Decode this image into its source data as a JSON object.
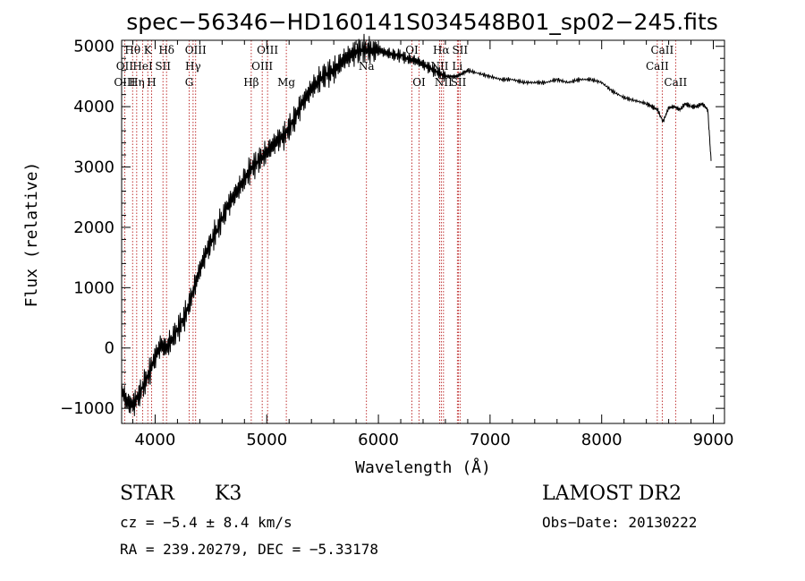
{
  "chart_data": {
    "type": "line",
    "title": "spec−56346−HD160141S034548B01_sp02−245.fits",
    "xlabel": "Wavelength (Å)",
    "ylabel": "Flux (relative)",
    "xlim": [
      3700,
      9100
    ],
    "ylim": [
      -1250,
      5100
    ],
    "x_ticks": [
      4000,
      5000,
      6000,
      7000,
      8000,
      9000
    ],
    "y_ticks": [
      -1000,
      0,
      1000,
      2000,
      3000,
      4000,
      5000
    ],
    "y_tick_labels": [
      "−1000",
      "0",
      "1000",
      "2000",
      "3000",
      "4000",
      "5000"
    ],
    "grid": false,
    "series": [
      {
        "x": [
          3700,
          3750,
          3800,
          3850,
          3900,
          3950,
          4000,
          4050,
          4100,
          4150,
          4200,
          4250,
          4300,
          4350,
          4400,
          4450,
          4500,
          4550,
          4600,
          4650,
          4700,
          4750,
          4800,
          4850,
          4900,
          4950,
          5000,
          5050,
          5100,
          5150,
          5200,
          5250,
          5300,
          5350,
          5400,
          5450,
          5500,
          5550,
          5600,
          5650,
          5700,
          5750,
          5800,
          5850,
          5900,
          5950,
          6000,
          6050,
          6100,
          6150,
          6200,
          6250,
          6300,
          6350,
          6400,
          6450,
          6500,
          6550,
          6600,
          6650,
          6700,
          6750,
          6800,
          6900,
          7000,
          7100,
          7200,
          7300,
          7400,
          7500,
          7600,
          7700,
          7800,
          7900,
          8000,
          8100,
          8200,
          8300,
          8400,
          8450,
          8500,
          8550,
          8600,
          8650,
          8700,
          8750,
          8800,
          8850,
          8900,
          8950,
          8980
        ],
        "y": [
          -700,
          -900,
          -950,
          -800,
          -600,
          -400,
          -150,
          50,
          0,
          150,
          300,
          450,
          700,
          1000,
          1300,
          1550,
          1750,
          1950,
          2150,
          2350,
          2500,
          2650,
          2800,
          2950,
          3050,
          3150,
          3250,
          3350,
          3450,
          3500,
          3650,
          3800,
          4000,
          4150,
          4300,
          4400,
          4500,
          4550,
          4600,
          4700,
          4800,
          4850,
          4900,
          4950,
          4950,
          4920,
          4950,
          4900,
          4880,
          4850,
          4850,
          4800,
          4780,
          4750,
          4700,
          4650,
          4600,
          4550,
          4500,
          4500,
          4500,
          4550,
          4600,
          4550,
          4500,
          4450,
          4450,
          4400,
          4400,
          4400,
          4450,
          4400,
          4450,
          4450,
          4400,
          4250,
          4150,
          4100,
          4050,
          4000,
          3950,
          3750,
          3980,
          4000,
          3950,
          4050,
          4000,
          4000,
          4050,
          3950,
          3100
        ]
      }
    ],
    "line_labels": [
      {
        "text": "Hθ",
        "x": 3798,
        "row": 1
      },
      {
        "text": "K",
        "x": 3934,
        "row": 1
      },
      {
        "text": "Hδ",
        "x": 4102,
        "row": 1
      },
      {
        "text": "OIII",
        "x": 4363,
        "row": 1
      },
      {
        "text": "OIII",
        "x": 5007,
        "row": 1
      },
      {
        "text": "OI",
        "x": 6300,
        "row": 1
      },
      {
        "text": "Hα",
        "x": 6563,
        "row": 1
      },
      {
        "text": "SII",
        "x": 6731,
        "row": 1
      },
      {
        "text": "CaII",
        "x": 8542,
        "row": 1
      },
      {
        "text": "OII",
        "x": 3727,
        "row": 2
      },
      {
        "text": "HeI",
        "x": 3889,
        "row": 2
      },
      {
        "text": "SII",
        "x": 4070,
        "row": 2
      },
      {
        "text": "Hγ",
        "x": 4340,
        "row": 2
      },
      {
        "text": "OIII",
        "x": 4959,
        "row": 2
      },
      {
        "text": "Na",
        "x": 5893,
        "row": 2
      },
      {
        "text": "NII",
        "x": 6548,
        "row": 2
      },
      {
        "text": "Li",
        "x": 6707,
        "row": 2
      },
      {
        "text": "CaII",
        "x": 8498,
        "row": 2
      },
      {
        "text": "OIII",
        "x": 3727,
        "row": 3
      },
      {
        "text": "Hη",
        "x": 3835,
        "row": 3
      },
      {
        "text": "H",
        "x": 3968,
        "row": 3
      },
      {
        "text": "G",
        "x": 4305,
        "row": 3
      },
      {
        "text": "Hβ",
        "x": 4861,
        "row": 3
      },
      {
        "text": "Mg",
        "x": 5175,
        "row": 3
      },
      {
        "text": "OI",
        "x": 6364,
        "row": 3
      },
      {
        "text": "NII",
        "x": 6583,
        "row": 3
      },
      {
        "text": "SII",
        "x": 6717,
        "row": 3
      },
      {
        "text": "CaII",
        "x": 8662,
        "row": 3
      }
    ],
    "line_markers_x": [
      3727,
      3798,
      3835,
      3889,
      3934,
      3968,
      4070,
      4102,
      4305,
      4340,
      4363,
      4861,
      4959,
      5007,
      5175,
      5893,
      6300,
      6364,
      6548,
      6563,
      6583,
      6707,
      6717,
      6731,
      8498,
      8542,
      8662
    ],
    "marker_color": "#b00000"
  },
  "info": {
    "class": "STAR",
    "subclass": "K3",
    "survey": "LAMOST DR2",
    "cz": "cz = −5.4 ± 8.4 km/s",
    "obsdate": "Obs−Date: 20130222",
    "radec": "RA = 239.20279, DEC =  −5.33178"
  }
}
